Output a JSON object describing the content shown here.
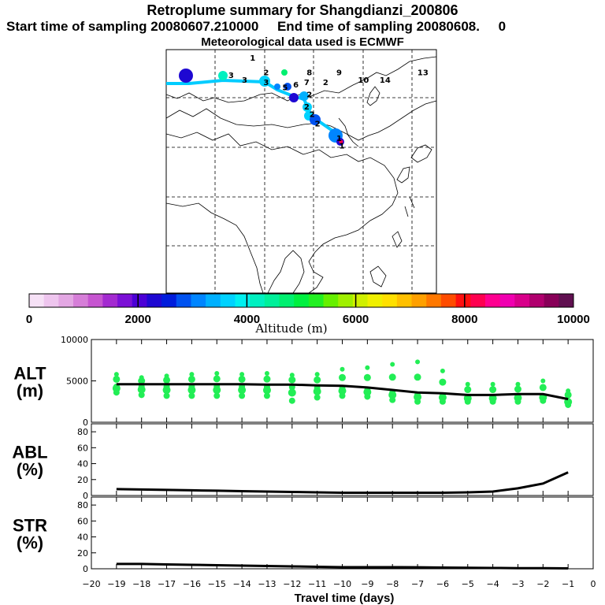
{
  "chart_data": {
    "type": "retroplume-summary",
    "title": "Retroplume summary for Shangdianzi_200806",
    "subtitle_start": "Start time of sampling 20080607.210000",
    "subtitle_end": "End time of sampling 20080608.     0",
    "met_line": "Meteorological data used is ECMWF",
    "colorbar": {
      "label": "Altitude (m)",
      "ticks": [
        "0",
        "2000",
        "4000",
        "6000",
        "8000",
        "10000"
      ],
      "range": [
        0,
        10000
      ],
      "colors": [
        "#f6e1f6",
        "#eec5ee",
        "#e3a7e3",
        "#d67ed8",
        "#c655d0",
        "#a32ad0",
        "#7b10d6",
        "#4b00d6",
        "#1e08d2",
        "#001cdc",
        "#0052f0",
        "#0085ff",
        "#00b0ff",
        "#00d2ff",
        "#00f0f0",
        "#00f0c0",
        "#00f09a",
        "#00f070",
        "#00f040",
        "#22f022",
        "#66f000",
        "#a0f000",
        "#d0f000",
        "#f0f000",
        "#ffe000",
        "#ffc000",
        "#ffa000",
        "#ff7800",
        "#ff4c00",
        "#ff1010",
        "#ff0050",
        "#ff0090",
        "#f000b0",
        "#d8008a",
        "#b0006e",
        "#880058",
        "#601050"
      ]
    },
    "map_labels": [
      {
        "text": "1",
        "lon": 0.32,
        "lat": 0.02
      },
      {
        "text": "2",
        "lon": 0.37,
        "lat": 0.08
      },
      {
        "text": "3",
        "lon": 0.24,
        "lat": 0.09
      },
      {
        "text": "3",
        "lon": 0.29,
        "lat": 0.11
      },
      {
        "text": "3",
        "lon": 0.37,
        "lat": 0.12
      },
      {
        "text": "5",
        "lon": 0.44,
        "lat": 0.14
      },
      {
        "text": "6",
        "lon": 0.48,
        "lat": 0.13
      },
      {
        "text": "7",
        "lon": 0.52,
        "lat": 0.12
      },
      {
        "text": "8",
        "lon": 0.53,
        "lat": 0.08
      },
      {
        "text": "9",
        "lon": 0.64,
        "lat": 0.08
      },
      {
        "text": "2",
        "lon": 0.59,
        "lat": 0.12
      },
      {
        "text": "10",
        "lon": 0.73,
        "lat": 0.11
      },
      {
        "text": "14",
        "lon": 0.81,
        "lat": 0.11
      },
      {
        "text": "13",
        "lon": 0.95,
        "lat": 0.08
      },
      {
        "text": "2",
        "lon": 0.53,
        "lat": 0.17
      },
      {
        "text": "2",
        "lon": 0.52,
        "lat": 0.22
      },
      {
        "text": "2",
        "lon": 0.54,
        "lat": 0.25
      },
      {
        "text": "2",
        "lon": 0.56,
        "lat": 0.29
      },
      {
        "text": "1",
        "lon": 0.64,
        "lat": 0.35
      },
      {
        "text": "1",
        "lon": 0.65,
        "lat": 0.38
      }
    ],
    "alt_panel": {
      "ylabel": "ALT\n(m)",
      "yticks": [
        10000,
        5000,
        0
      ],
      "ylim": [
        0,
        10000
      ],
      "x": [
        -19,
        -18,
        -17,
        -16,
        -15,
        -14,
        -13,
        -12,
        -11,
        -10,
        -9,
        -8,
        -7,
        -6,
        -5,
        -4,
        -3,
        -2,
        -1
      ],
      "mean": [
        4600,
        4600,
        4600,
        4600,
        4600,
        4600,
        4550,
        4550,
        4450,
        4400,
        4200,
        3900,
        3600,
        3500,
        3300,
        3300,
        3400,
        3400,
        2800
      ],
      "cloud_high": [
        5800,
        5400,
        5600,
        5800,
        5900,
        5800,
        5900,
        5700,
        5800,
        6400,
        6600,
        7000,
        7300,
        6200,
        4600,
        4600,
        4600,
        5000,
        3800
      ],
      "cloud_low": [
        3600,
        3300,
        3200,
        3200,
        3200,
        3200,
        3200,
        2600,
        3000,
        3200,
        3100,
        2700,
        2500,
        2500,
        2500,
        2500,
        2500,
        2600,
        2100
      ]
    },
    "abl_panel": {
      "ylabel": "ABL\n(%)",
      "yticks": [
        0,
        20,
        40,
        60,
        80
      ],
      "ylim": [
        0,
        90
      ],
      "x": [
        -19,
        -18,
        -17,
        -16,
        -15,
        -14,
        -13,
        -12,
        -11,
        -10,
        -9,
        -8,
        -7,
        -6,
        -5,
        -4,
        -3,
        -2,
        -1
      ],
      "values": [
        8,
        7.5,
        7,
        6.5,
        6,
        5.5,
        5,
        4.5,
        4,
        3.5,
        3.5,
        3.5,
        3.5,
        3.5,
        4,
        5,
        9,
        15,
        29
      ]
    },
    "str_panel": {
      "ylabel": "STR\n(%)",
      "yticks": [
        0,
        20,
        40,
        60,
        80
      ],
      "ylim": [
        0,
        90
      ],
      "x": [
        -19,
        -18,
        -17,
        -16,
        -15,
        -14,
        -13,
        -12,
        -11,
        -10,
        -9,
        -8,
        -7,
        -6,
        -5,
        -4,
        -3,
        -2,
        -1
      ],
      "values": [
        6,
        6,
        5.5,
        5,
        4.5,
        4,
        3.5,
        3,
        2.5,
        2,
        2,
        2,
        1.8,
        1.5,
        1.2,
        1,
        0.8,
        0.7,
        0.5
      ]
    },
    "xaxis": {
      "xlabel": "Travel time (days)",
      "xlim": [
        -20,
        0
      ],
      "ticks": [
        -20,
        -19,
        -18,
        -17,
        -16,
        -15,
        -14,
        -13,
        -12,
        -11,
        -10,
        -9,
        -8,
        -7,
        -6,
        -5,
        -4,
        -3,
        -2,
        -1,
        0
      ]
    }
  },
  "colors": {
    "cloud": "#22ee55",
    "mean_line": "#000000",
    "track": "#00ccff"
  }
}
